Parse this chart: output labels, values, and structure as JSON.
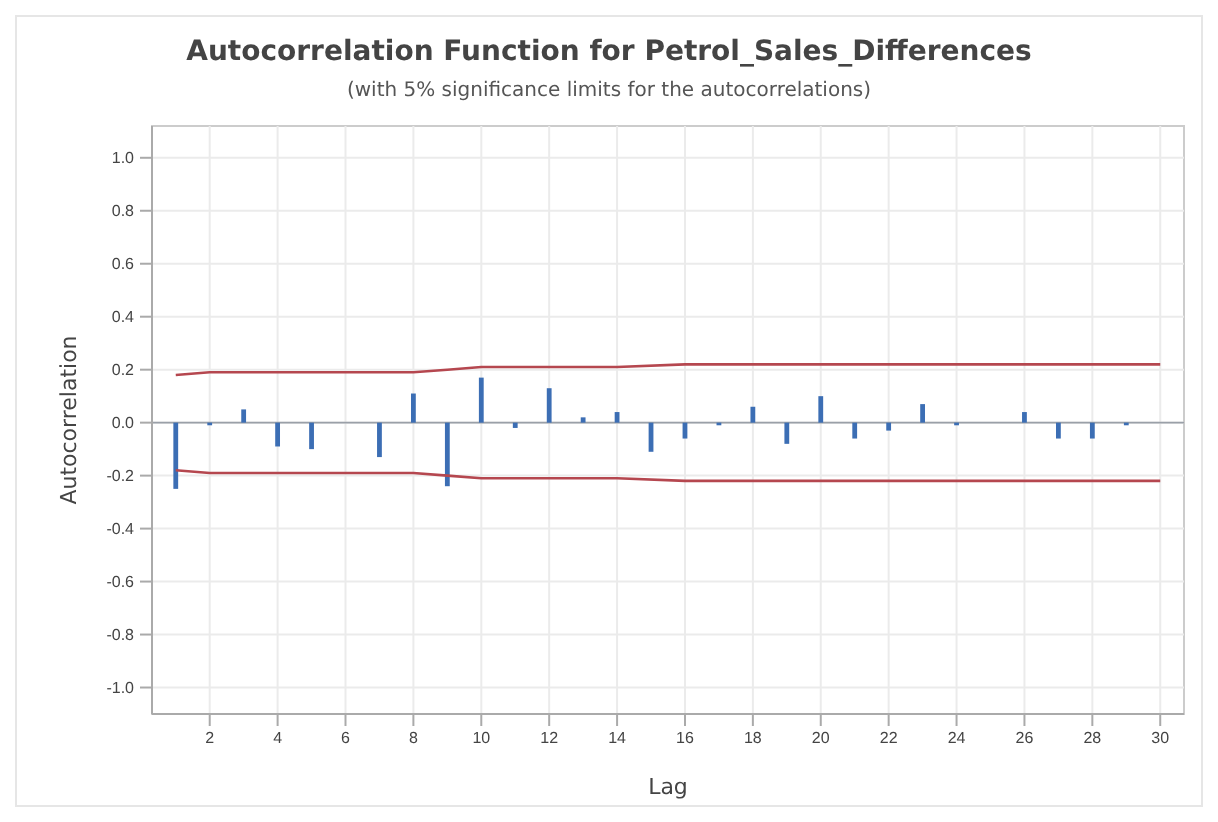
{
  "chart_data": {
    "type": "bar",
    "title": "Autocorrelation Function for Petrol_Sales_Differences",
    "subtitle": "(with 5% significance limits for the autocorrelations)",
    "xlabel": "Lag",
    "ylabel": "Autocorrelation",
    "x": [
      1,
      2,
      3,
      4,
      5,
      6,
      7,
      8,
      9,
      10,
      11,
      12,
      13,
      14,
      15,
      16,
      17,
      18,
      19,
      20,
      21,
      22,
      23,
      24,
      25,
      26,
      27,
      28,
      29
    ],
    "series": [
      {
        "color": "#3c6eb4",
        "values": [
          -0.25,
          -0.01,
          0.05,
          -0.09,
          -0.1,
          0.0,
          -0.13,
          0.11,
          -0.24,
          0.17,
          -0.02,
          0.13,
          0.02,
          0.04,
          -0.11,
          -0.06,
          -0.01,
          0.06,
          -0.08,
          0.1,
          -0.06,
          -0.03,
          0.07,
          -0.01,
          0.0,
          0.04,
          -0.06,
          -0.06,
          -0.01
        ]
      },
      {
        "type": "line",
        "color": "#b5474f",
        "x": [
          1,
          2,
          4,
          6,
          8,
          9,
          10,
          12,
          14,
          16,
          18,
          20,
          22,
          24,
          26,
          28,
          30
        ],
        "values": [
          0.18,
          0.19,
          0.19,
          0.19,
          0.19,
          0.2,
          0.21,
          0.21,
          0.21,
          0.22,
          0.22,
          0.22,
          0.22,
          0.22,
          0.22,
          0.22,
          0.22
        ]
      },
      {
        "type": "line",
        "color": "#b5474f",
        "x": [
          1,
          2,
          4,
          6,
          8,
          9,
          10,
          12,
          14,
          16,
          18,
          20,
          22,
          24,
          26,
          28,
          30
        ],
        "values": [
          -0.18,
          -0.19,
          -0.19,
          -0.19,
          -0.19,
          -0.2,
          -0.21,
          -0.21,
          -0.21,
          -0.22,
          -0.22,
          -0.22,
          -0.22,
          -0.22,
          -0.22,
          -0.22,
          -0.22
        ]
      }
    ],
    "ref_lines": [
      {
        "axis": "y",
        "value": 0,
        "color": "#9aa0a8"
      }
    ],
    "xlim": [
      0.3,
      30.7
    ],
    "xticks": [
      2,
      4,
      6,
      8,
      10,
      12,
      14,
      16,
      18,
      20,
      22,
      24,
      26,
      28,
      30
    ],
    "ylim": [
      -1.1,
      1.12
    ],
    "yticks": [
      {
        "value": -1,
        "label": "-1.0"
      },
      {
        "value": -0.8,
        "label": "-0.8"
      },
      {
        "value": -0.6,
        "label": "-0.6"
      },
      {
        "value": -0.4,
        "label": "-0.4"
      },
      {
        "value": -0.2,
        "label": "-0.2"
      },
      {
        "value": 0,
        "label": "0.0"
      },
      {
        "value": 0.2,
        "label": "0.2"
      },
      {
        "value": 0.4,
        "label": "0.4"
      },
      {
        "value": 0.6,
        "label": "0.6"
      },
      {
        "value": 0.8,
        "label": "0.8"
      },
      {
        "value": 1,
        "label": "1.0"
      }
    ],
    "grid": true
  }
}
